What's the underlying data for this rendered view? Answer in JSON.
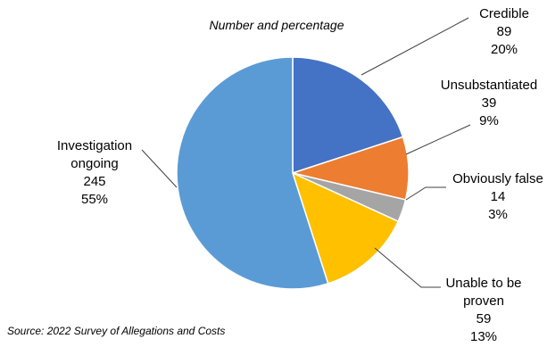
{
  "chart_data": {
    "type": "pie",
    "subtitle": "Number and percentage",
    "source": "Source: 2022 Survey of Allegations and Costs",
    "start_angle_deg": 0,
    "direction": "clockwise",
    "slices": [
      {
        "label_lines": [
          "Credible"
        ],
        "value": 89,
        "value_text": "89",
        "percent_text": "20%",
        "color": "#4472C4"
      },
      {
        "label_lines": [
          "Unsubstantiated"
        ],
        "value": 39,
        "value_text": "39",
        "percent_text": "9%",
        "color": "#ED7D31"
      },
      {
        "label_lines": [
          "Obviously false"
        ],
        "value": 14,
        "value_text": "14",
        "percent_text": "3%",
        "color": "#A5A5A5"
      },
      {
        "label_lines": [
          "Unable to be",
          "proven"
        ],
        "value": 59,
        "value_text": "59",
        "percent_text": "13%",
        "color": "#FFC000"
      },
      {
        "label_lines": [
          "Investigation",
          "ongoing"
        ],
        "value": 245,
        "value_text": "245",
        "percent_text": "55%",
        "color": "#5B9BD5"
      }
    ]
  }
}
